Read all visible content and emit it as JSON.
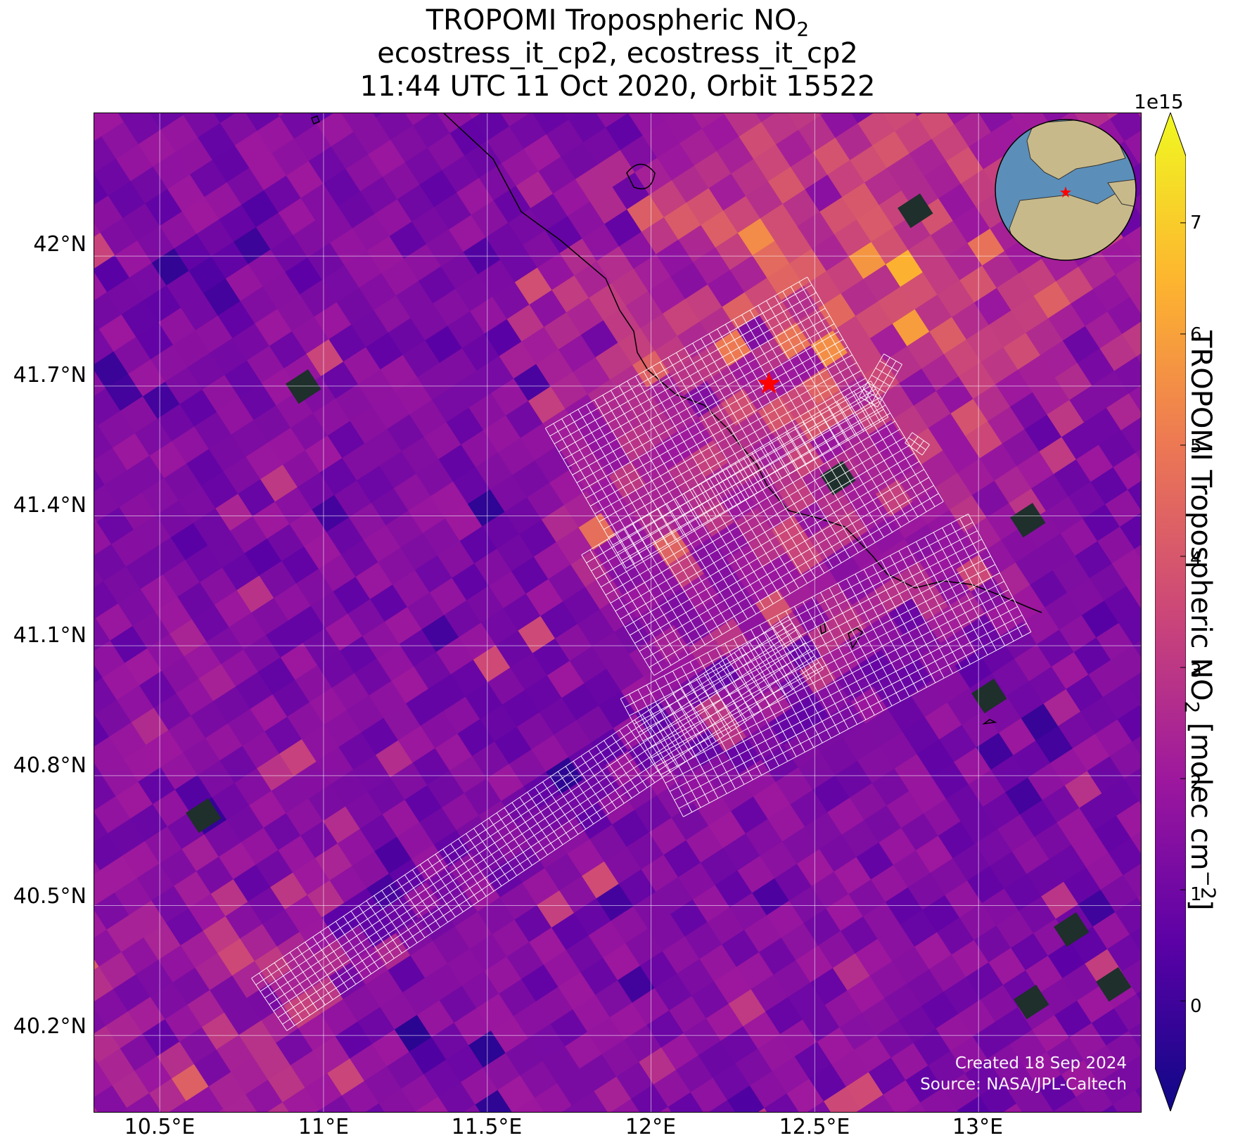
{
  "titles": {
    "line1_text": "TROPOMI Tropospheric NO",
    "line1_sub": "2",
    "line2": "ecostress_it_cp2, ecostress_it_cp2",
    "line3": "11:44 UTC 11 Oct 2020, Orbit 15522"
  },
  "credits": {
    "created": "Created 18 Sep 2024",
    "source": "Source: NASA/JPL-Caltech"
  },
  "axes": {
    "lat_ticks": [
      "42°N",
      "41.7°N",
      "41.4°N",
      "41.1°N",
      "40.8°N",
      "40.5°N",
      "40.2°N"
    ],
    "lon_ticks": [
      "10.5°E",
      "11°E",
      "11.5°E",
      "12°E",
      "12.5°E",
      "13°E"
    ]
  },
  "map_extent": {
    "lon": [
      10.3,
      13.5
    ],
    "lat": [
      40.02,
      42.33
    ]
  },
  "colorbar": {
    "exponent": "1e15",
    "ticks": [
      "7",
      "6",
      "5",
      "4",
      "3",
      "2",
      "1",
      "0"
    ],
    "tick_values": [
      7,
      6,
      5,
      4,
      3,
      2,
      1,
      0
    ],
    "range": [
      -0.6,
      7.6
    ],
    "colormap": "plasma",
    "label_prefix": "TROPOMI Tropospheric NO",
    "label_sub": "2",
    "label_mid": " [molec cm",
    "label_sup": "−2",
    "label_suffix": "]",
    "colors": [
      "#0d0887",
      "#5c01a6",
      "#9c179e",
      "#cc4778",
      "#ed7953",
      "#fdb42f",
      "#f0f921"
    ]
  },
  "markers": {
    "star_color": "#ff0000",
    "star_lon": 12.36,
    "star_lat": 41.705
  },
  "footprints": {
    "color": "#ffffff"
  },
  "inset_globe": {
    "ocean": "#5b8fb9",
    "land": "#c8b98a",
    "marker_color": "#ff0000"
  }
}
